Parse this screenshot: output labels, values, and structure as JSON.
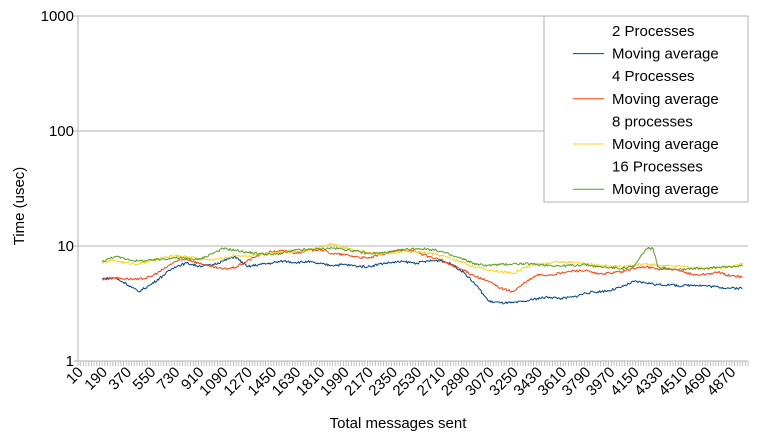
{
  "chart_data": {
    "type": "line",
    "xlabel": "Total messages sent",
    "ylabel": "Time (usec)",
    "yscale": "log",
    "ylim": [
      1,
      1000
    ],
    "y_ticks": [
      "1",
      "10",
      "100",
      "1000"
    ],
    "x_ticks": [
      "10",
      "190",
      "370",
      "550",
      "730",
      "910",
      "1090",
      "1270",
      "1450",
      "1630",
      "1810",
      "1990",
      "2170",
      "2350",
      "2530",
      "2710",
      "2890",
      "3070",
      "3250",
      "3430",
      "3610",
      "3790",
      "3970",
      "4150",
      "4330",
      "4510",
      "4690",
      "4870"
    ],
    "xlim": [
      10,
      5000
    ],
    "grid": "horizontal",
    "legend_position": "top-right",
    "legend": [
      "2 Processes",
      "Moving average",
      "4 Processes",
      "Moving average",
      "8 processes",
      "Moving average",
      "16 Processes",
      "Moving average"
    ],
    "series": [
      {
        "name": "2 Processes",
        "kind": "raw",
        "color": "#004586",
        "values": []
      },
      {
        "name": "Moving average",
        "kind": "moving-average",
        "color": "#004586",
        "x": [
          190,
          280,
          370,
          460,
          550,
          640,
          730,
          820,
          910,
          1000,
          1090,
          1180,
          1270,
          1360,
          1450,
          1540,
          1630,
          1720,
          1810,
          1900,
          1990,
          2080,
          2170,
          2260,
          2350,
          2440,
          2530,
          2620,
          2710,
          2800,
          2890,
          2980,
          3070,
          3160,
          3250,
          3340,
          3430,
          3520,
          3610,
          3700,
          3790,
          3880,
          3970,
          4060,
          4150,
          4240,
          4330,
          4420,
          4510,
          4600,
          4690,
          4780,
          4870,
          4960
        ],
        "y": [
          5.2,
          5.3,
          4.7,
          4.0,
          4.6,
          5.5,
          6.6,
          7.1,
          6.7,
          6.8,
          7.4,
          8.1,
          6.6,
          6.9,
          7.1,
          7.4,
          7.2,
          7.3,
          7.0,
          6.8,
          6.9,
          6.7,
          6.6,
          7.0,
          7.2,
          7.3,
          7.1,
          7.4,
          7.5,
          6.9,
          5.8,
          4.5,
          3.3,
          3.2,
          3.2,
          3.3,
          3.5,
          3.6,
          3.5,
          3.6,
          3.9,
          4.0,
          4.1,
          4.4,
          4.9,
          4.8,
          4.6,
          4.6,
          4.5,
          4.6,
          4.5,
          4.4,
          4.3,
          4.3
        ]
      },
      {
        "name": "4 Processes",
        "kind": "raw",
        "color": "#ff420e",
        "values": []
      },
      {
        "name": "Moving average",
        "kind": "moving-average",
        "color": "#ff420e",
        "x": [
          190,
          280,
          370,
          460,
          550,
          640,
          730,
          820,
          910,
          1000,
          1090,
          1180,
          1270,
          1360,
          1450,
          1540,
          1630,
          1720,
          1810,
          1900,
          1990,
          2080,
          2170,
          2260,
          2350,
          2440,
          2530,
          2620,
          2710,
          2800,
          2890,
          2980,
          3070,
          3160,
          3250,
          3340,
          3430,
          3520,
          3610,
          3700,
          3790,
          3880,
          3970,
          4060,
          4150,
          4240,
          4330,
          4420,
          4510,
          4600,
          4690,
          4780,
          4870,
          4960
        ],
        "y": [
          5.1,
          5.3,
          5.2,
          5.1,
          5.4,
          6.2,
          7.3,
          7.7,
          7.1,
          6.6,
          6.3,
          6.5,
          7.4,
          8.4,
          8.9,
          9.1,
          8.7,
          9.1,
          9.4,
          8.6,
          8.4,
          8.1,
          7.8,
          8.4,
          8.9,
          9.3,
          8.9,
          8.1,
          7.6,
          6.7,
          6.1,
          5.4,
          4.9,
          4.3,
          4.0,
          4.8,
          5.6,
          5.6,
          5.8,
          6.1,
          6.1,
          5.7,
          5.8,
          6.0,
          6.4,
          6.6,
          6.3,
          6.3,
          6.0,
          5.6,
          5.7,
          5.9,
          5.5,
          5.4
        ]
      },
      {
        "name": "8 processes",
        "kind": "raw",
        "color": "#ffd320",
        "values": []
      },
      {
        "name": "Moving average",
        "kind": "moving-average",
        "color": "#ffd320",
        "x": [
          190,
          280,
          370,
          460,
          550,
          640,
          730,
          820,
          910,
          1000,
          1090,
          1180,
          1270,
          1360,
          1450,
          1540,
          1630,
          1720,
          1810,
          1900,
          1990,
          2080,
          2170,
          2260,
          2350,
          2440,
          2530,
          2620,
          2710,
          2800,
          2890,
          2980,
          3070,
          3160,
          3250,
          3340,
          3430,
          3520,
          3610,
          3700,
          3790,
          3880,
          3970,
          4060,
          4150,
          4240,
          4330,
          4420,
          4510,
          4600,
          4690,
          4780,
          4870,
          4960
        ],
        "y": [
          7.2,
          7.5,
          7.1,
          7.0,
          7.4,
          7.9,
          8.2,
          8.1,
          7.8,
          7.6,
          7.8,
          8.3,
          8.2,
          8.4,
          8.6,
          8.9,
          9.0,
          9.2,
          9.8,
          10.4,
          9.8,
          9.2,
          8.8,
          8.6,
          8.7,
          9.0,
          8.9,
          8.6,
          8.3,
          7.7,
          7.1,
          6.5,
          6.2,
          6.0,
          5.8,
          6.5,
          7.0,
          7.1,
          7.3,
          7.2,
          7.0,
          6.8,
          6.7,
          6.6,
          6.8,
          7.0,
          6.8,
          6.7,
          6.6,
          6.5,
          6.4,
          6.5,
          6.6,
          7.1
        ]
      },
      {
        "name": "16 Processes",
        "kind": "raw",
        "color": "#579d1c",
        "values": []
      },
      {
        "name": "Moving average",
        "kind": "moving-average",
        "color": "#579d1c",
        "x": [
          190,
          280,
          370,
          460,
          550,
          640,
          730,
          820,
          910,
          1000,
          1090,
          1180,
          1270,
          1360,
          1450,
          1540,
          1630,
          1720,
          1810,
          1900,
          1990,
          2080,
          2170,
          2260,
          2350,
          2440,
          2530,
          2620,
          2710,
          2800,
          2890,
          2980,
          3070,
          3160,
          3250,
          3340,
          3430,
          3520,
          3610,
          3700,
          3790,
          3880,
          3970,
          4060,
          4150,
          4240,
          4290,
          4330,
          4420,
          4510,
          4600,
          4690,
          4780,
          4870,
          4960
        ],
        "y": [
          7.3,
          8.1,
          7.7,
          7.4,
          7.5,
          7.7,
          7.9,
          7.8,
          7.6,
          8.5,
          9.5,
          9.2,
          8.8,
          8.6,
          8.4,
          8.7,
          9.2,
          9.3,
          9.4,
          9.6,
          9.4,
          9.0,
          8.6,
          8.7,
          8.9,
          9.3,
          9.5,
          9.4,
          9.0,
          8.2,
          7.6,
          6.9,
          6.8,
          6.9,
          7.0,
          7.0,
          6.9,
          6.8,
          6.7,
          6.8,
          6.9,
          6.6,
          6.5,
          6.4,
          6.6,
          9.4,
          9.6,
          6.6,
          6.3,
          6.3,
          6.4,
          6.4,
          6.5,
          6.6,
          6.7
        ]
      }
    ]
  }
}
